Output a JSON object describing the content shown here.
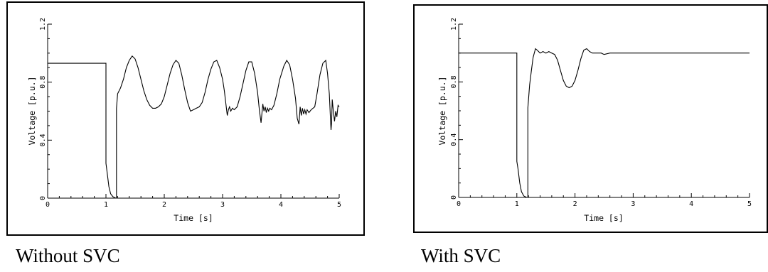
{
  "chart_data": [
    {
      "type": "line",
      "caption": "Without SVC",
      "xlabel": "Time [s]",
      "ylabel": "Voltage [p.u.]",
      "xlim": [
        0,
        5
      ],
      "ylim": [
        0,
        1.2
      ],
      "xticks": [
        "0",
        "1",
        "2",
        "3",
        "4",
        "5"
      ],
      "yticks": [
        "0",
        "0.4",
        "0.8",
        "1.2"
      ],
      "series": [
        {
          "x": [
            0,
            1.0,
            1.0,
            1.02,
            1.05,
            1.08,
            1.12,
            1.17,
            1.18,
            1.18,
            1.2,
            1.25,
            1.3,
            1.35,
            1.4,
            1.45,
            1.5,
            1.55,
            1.6,
            1.65,
            1.7,
            1.75,
            1.8,
            1.85,
            1.9,
            1.95,
            2.0,
            2.05,
            2.1,
            2.15,
            2.2,
            2.25,
            2.3,
            2.35,
            2.4,
            2.45,
            2.5,
            2.55,
            2.6,
            2.65,
            2.7,
            2.75,
            2.8,
            2.85,
            2.9,
            2.95,
            3.0,
            3.03,
            3.06,
            3.08,
            3.1,
            3.12,
            3.14,
            3.17,
            3.2,
            3.25,
            3.3,
            3.35,
            3.4,
            3.45,
            3.5,
            3.55,
            3.6,
            3.63,
            3.66,
            3.69,
            3.71,
            3.73,
            3.75,
            3.77,
            3.79,
            3.81,
            3.84,
            3.88,
            3.93,
            3.98,
            4.05,
            4.1,
            4.15,
            4.2,
            4.25,
            4.28,
            4.31,
            4.33,
            4.35,
            4.37,
            4.39,
            4.41,
            4.43,
            4.45,
            4.48,
            4.52,
            4.58,
            4.62,
            4.67,
            4.72,
            4.77,
            4.8,
            4.83,
            4.85,
            4.86,
            4.87,
            4.88,
            4.9,
            4.92,
            4.94,
            4.96,
            4.98,
            5.0
          ],
          "y": [
            0.93,
            0.93,
            0.24,
            0.18,
            0.08,
            0.03,
            0.01,
            0.0,
            0.0,
            0.62,
            0.72,
            0.76,
            0.82,
            0.9,
            0.95,
            0.98,
            0.96,
            0.9,
            0.82,
            0.74,
            0.68,
            0.64,
            0.62,
            0.62,
            0.63,
            0.65,
            0.7,
            0.78,
            0.86,
            0.92,
            0.95,
            0.93,
            0.85,
            0.75,
            0.66,
            0.6,
            0.61,
            0.62,
            0.63,
            0.66,
            0.73,
            0.82,
            0.89,
            0.94,
            0.95,
            0.9,
            0.82,
            0.74,
            0.64,
            0.57,
            0.61,
            0.63,
            0.6,
            0.62,
            0.61,
            0.63,
            0.7,
            0.79,
            0.88,
            0.94,
            0.94,
            0.86,
            0.73,
            0.61,
            0.52,
            0.65,
            0.6,
            0.63,
            0.59,
            0.62,
            0.6,
            0.62,
            0.61,
            0.64,
            0.72,
            0.82,
            0.91,
            0.95,
            0.92,
            0.82,
            0.69,
            0.55,
            0.51,
            0.63,
            0.57,
            0.62,
            0.58,
            0.61,
            0.58,
            0.61,
            0.59,
            0.61,
            0.63,
            0.72,
            0.85,
            0.93,
            0.95,
            0.86,
            0.72,
            0.55,
            0.47,
            0.52,
            0.68,
            0.6,
            0.53,
            0.6,
            0.56,
            0.64,
            0.63
          ]
        }
      ]
    },
    {
      "type": "line",
      "caption": "With SVC",
      "xlabel": "Time [s]",
      "ylabel": "Voltage [p.u.]",
      "xlim": [
        0,
        5
      ],
      "ylim": [
        0,
        1.2
      ],
      "xticks": [
        "0",
        "1",
        "2",
        "3",
        "4",
        "5"
      ],
      "yticks": [
        "0",
        "0.4",
        "0.8",
        "1.2"
      ],
      "series": [
        {
          "x": [
            0,
            1.0,
            1.0,
            1.02,
            1.05,
            1.08,
            1.12,
            1.17,
            1.19,
            1.19,
            1.22,
            1.25,
            1.28,
            1.32,
            1.35,
            1.4,
            1.45,
            1.5,
            1.55,
            1.6,
            1.65,
            1.7,
            1.75,
            1.8,
            1.85,
            1.9,
            1.95,
            2.0,
            2.05,
            2.1,
            2.15,
            2.2,
            2.25,
            2.3,
            2.35,
            2.4,
            2.45,
            2.5,
            2.6,
            2.7,
            2.8,
            3.0,
            4.0,
            5.0
          ],
          "y": [
            1.0,
            1.0,
            0.25,
            0.2,
            0.1,
            0.04,
            0.01,
            0.0,
            0.0,
            0.62,
            0.78,
            0.88,
            0.97,
            1.03,
            1.02,
            1.0,
            1.01,
            1.0,
            1.01,
            1.0,
            0.99,
            0.95,
            0.88,
            0.81,
            0.77,
            0.76,
            0.77,
            0.81,
            0.88,
            0.96,
            1.02,
            1.03,
            1.01,
            1.0,
            1.0,
            1.0,
            1.0,
            0.99,
            1.0,
            1.0,
            1.0,
            1.0,
            1.0,
            1.0
          ]
        }
      ]
    }
  ]
}
